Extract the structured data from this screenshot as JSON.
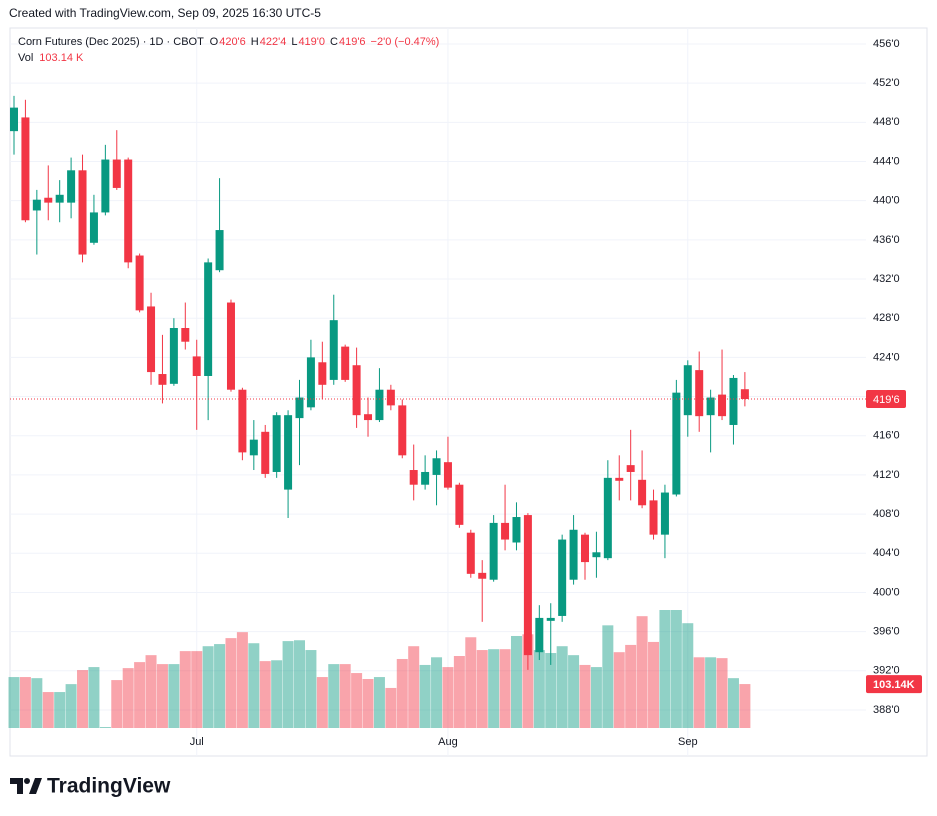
{
  "header": {
    "text": "Created with TradingView.com, Sep 09, 2025 16:30 UTC-5"
  },
  "brand": "TradingView",
  "chart_data": {
    "type": "candlestick",
    "symbol": "Corn Futures (Dec 2025) · 1D · CBOT",
    "legend_values": [
      {
        "label": "O",
        "value": "420'6"
      },
      {
        "label": "H",
        "value": "422'4"
      },
      {
        "label": "L",
        "value": "419'0"
      },
      {
        "label": "C",
        "value": "419'6"
      }
    ],
    "change": "−2'0 (−0.47%)",
    "price_label": "419'6",
    "up_color": "#089981",
    "down_color": "#f23645",
    "categories": [
      null,
      null,
      null,
      null,
      null,
      null,
      null,
      null,
      null,
      null,
      null,
      null,
      null,
      null,
      null,
      null,
      "Jul",
      null,
      null,
      null,
      null,
      null,
      null,
      null,
      null,
      null,
      null,
      null,
      null,
      null,
      null,
      null,
      null,
      null,
      null,
      null,
      null,
      null,
      "Aug",
      null,
      null,
      null,
      null,
      null,
      null,
      null,
      null,
      null,
      null,
      null,
      null,
      null,
      null,
      null,
      null,
      null,
      null,
      null,
      null,
      "Sep",
      null,
      null,
      null,
      null,
      null
    ],
    "open": [
      447.1,
      448.5,
      439.0,
      440.3,
      439.8,
      439.8,
      443.1,
      435.7,
      438.8,
      444.2,
      444.2,
      434.4,
      429.2,
      422.3,
      421.3,
      427.0,
      424.1,
      422.1,
      432.9,
      429.6,
      420.7,
      414.0,
      416.4,
      412.3,
      410.5,
      417.8,
      418.9,
      423.5,
      421.7,
      425.1,
      423.2,
      418.2,
      417.6,
      420.7,
      419.1,
      412.5,
      411.0,
      412.0,
      413.3,
      411.0,
      406.1,
      402.0,
      401.3,
      407.1,
      405.1,
      407.9,
      393.9,
      397.1,
      397.6,
      401.3,
      405.9,
      403.6,
      403.5,
      411.7,
      413.0,
      411.5,
      409.4,
      405.9,
      410.0,
      418.1,
      422.7,
      418.1,
      420.2,
      417.1,
      420.75
    ],
    "high": [
      450.7,
      450.3,
      441.1,
      443.6,
      442.1,
      444.4,
      444.7,
      440.6,
      445.7,
      447.2,
      444.4,
      434.6,
      430.6,
      426.3,
      428.0,
      429.6,
      425.8,
      434.1,
      442.3,
      429.9,
      420.9,
      417.6,
      417.1,
      418.4,
      418.6,
      421.7,
      425.8,
      425.6,
      430.4,
      425.3,
      425.0,
      419.9,
      422.9,
      421.2,
      419.7,
      415.1,
      414.0,
      414.5,
      415.9,
      411.2,
      406.4,
      403.3,
      407.9,
      411.0,
      409.2,
      408.1,
      398.7,
      398.9,
      405.9,
      407.9,
      406.1,
      406.2,
      413.5,
      414.0,
      416.6,
      414.5,
      410.5,
      411.0,
      421.7,
      423.7,
      424.6,
      420.7,
      424.8,
      422.2,
      422.5
    ],
    "low": [
      444.7,
      437.8,
      434.5,
      438.0,
      437.8,
      438.2,
      433.7,
      435.5,
      438.5,
      441.1,
      433.1,
      428.6,
      421.2,
      419.3,
      421.1,
      424.8,
      416.6,
      417.6,
      432.7,
      420.5,
      413.5,
      412.5,
      411.7,
      411.7,
      407.6,
      413.0,
      418.6,
      419.7,
      421.2,
      421.5,
      416.8,
      415.9,
      417.4,
      418.6,
      413.7,
      409.4,
      410.5,
      408.9,
      410.5,
      406.6,
      401.5,
      397.0,
      401.1,
      404.3,
      404.3,
      392.1,
      393.1,
      392.6,
      397.0,
      400.8,
      401.3,
      401.5,
      403.3,
      409.4,
      409.4,
      408.6,
      405.4,
      403.5,
      409.8,
      415.9,
      416.4,
      414.3,
      417.6,
      415.1,
      419.0
    ],
    "close": [
      449.5,
      438.0,
      440.1,
      439.8,
      440.6,
      443.1,
      434.5,
      438.8,
      444.2,
      441.3,
      433.7,
      428.8,
      422.5,
      421.2,
      427.0,
      425.6,
      422.1,
      433.7,
      437.0,
      420.7,
      414.3,
      415.6,
      412.1,
      418.1,
      418.1,
      419.9,
      424.0,
      421.2,
      427.8,
      421.7,
      418.1,
      417.6,
      420.7,
      419.1,
      414.0,
      411.0,
      412.3,
      413.7,
      410.7,
      406.9,
      401.9,
      401.4,
      407.1,
      405.4,
      407.7,
      393.6,
      397.4,
      397.4,
      405.4,
      406.4,
      403.1,
      404.1,
      411.7,
      411.4,
      412.3,
      408.9,
      405.9,
      410.2,
      420.4,
      423.2,
      418.0,
      419.9,
      418.0,
      421.9,
      419.75
    ],
    "volume": {
      "name": "Vol",
      "legend_label": "103.14 K",
      "axis_label": "103.14K",
      "values": [
        119.6,
        119.6,
        117,
        84.4,
        84.4,
        103,
        136,
        143,
        2.3,
        112.5,
        140.6,
        154.7,
        171,
        150,
        150,
        180.5,
        180.5,
        192,
        197,
        211,
        225,
        199,
        157,
        159,
        204,
        206,
        183,
        119.6,
        150,
        150,
        129,
        115,
        119.6,
        94,
        162,
        192,
        148,
        166,
        143,
        169,
        213,
        183,
        185,
        185,
        216,
        220,
        183,
        176,
        192,
        171,
        148,
        143,
        241,
        178,
        195,
        262.5,
        202,
        277,
        277,
        246,
        166,
        166,
        164,
        117,
        103.14
      ]
    },
    "ylim": [
      386.16,
      457.63
    ],
    "yticks": [
      {
        "value": 456,
        "label": "456'0"
      },
      {
        "value": 452,
        "label": "452'0"
      },
      {
        "value": 448,
        "label": "448'0"
      },
      {
        "value": 444,
        "label": "444'0"
      },
      {
        "value": 440,
        "label": "440'0"
      },
      {
        "value": 436,
        "label": "436'0"
      },
      {
        "value": 432,
        "label": "432'0"
      },
      {
        "value": 428,
        "label": "428'0"
      },
      {
        "value": 424,
        "label": "424'0"
      },
      {
        "value": 420,
        "label": "420'0"
      },
      {
        "value": 416,
        "label": "416'0"
      },
      {
        "value": 412,
        "label": "412'0"
      },
      {
        "value": 408,
        "label": "408'0"
      },
      {
        "value": 404,
        "label": "404'0"
      },
      {
        "value": 400,
        "label": "400'0"
      },
      {
        "value": 396,
        "label": "396'0"
      },
      {
        "value": 392,
        "label": "392'0"
      },
      {
        "value": 388,
        "label": "388'0"
      }
    ],
    "grid": true
  }
}
